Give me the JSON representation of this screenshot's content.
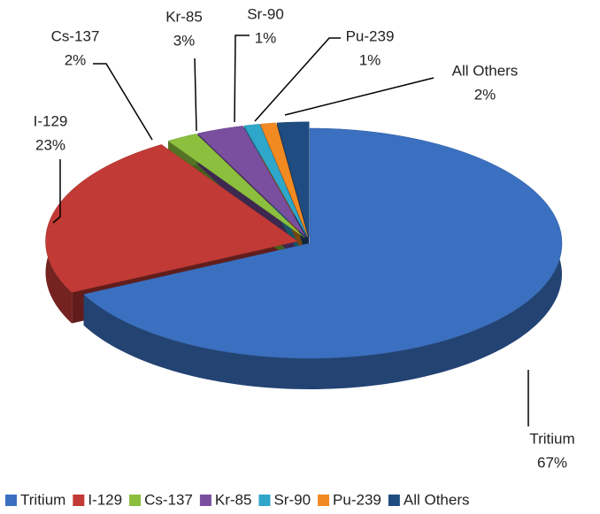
{
  "chart_data": {
    "type": "pie",
    "categories": [
      "Tritium",
      "I-129",
      "Cs-137",
      "Kr-85",
      "Sr-90",
      "Pu-239",
      "All Others"
    ],
    "values": [
      67,
      23,
      2,
      3,
      1,
      1,
      2
    ],
    "value_labels": [
      "67%",
      "23%",
      "2%",
      "3%",
      "1%",
      "1%",
      "2%"
    ],
    "colors": [
      "#3b70c0",
      "#c23a35",
      "#8dbf3e",
      "#7a4f9f",
      "#2fa7cb",
      "#f28a22",
      "#1f4d82"
    ],
    "legend": "bottom"
  }
}
